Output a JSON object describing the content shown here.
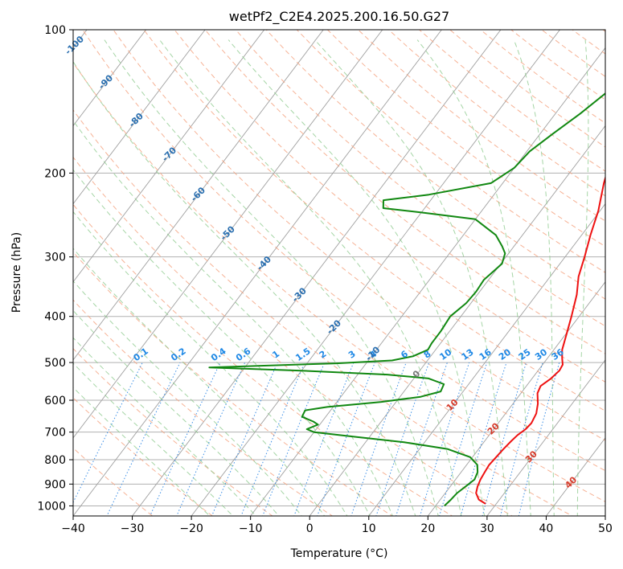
{
  "chart_data": {
    "type": "line",
    "title": "wetPf2_C2E4.2025.200.16.50.G27",
    "xlabel": "Temperature (°C)",
    "ylabel": "Pressure (hPa)",
    "xlim": [
      -40,
      50
    ],
    "ylim": [
      1050,
      100
    ],
    "y_scale": "log",
    "grid": true,
    "x_ticks": [
      -40,
      -30,
      -20,
      -10,
      0,
      10,
      20,
      30,
      40,
      50
    ],
    "y_ticks": [
      100,
      200,
      300,
      400,
      500,
      600,
      700,
      800,
      900,
      1000
    ],
    "colors": {
      "temperature": "#ee1111",
      "dewpoint": "#118811",
      "dry_adiabat": "#f4a582",
      "moist_adiabat": "#8fca8f",
      "mixing_ratio": "#3a8ee6",
      "skew_grid": "#a0a0a0"
    },
    "series": [
      {
        "points": [
          {
            "p": 990,
            "t": 28.2
          },
          {
            "p": 970,
            "t": 26.5
          },
          {
            "p": 940,
            "t": 25.2
          },
          {
            "p": 910,
            "t": 24.6
          },
          {
            "p": 880,
            "t": 24.2
          },
          {
            "p": 850,
            "t": 24.0
          },
          {
            "p": 820,
            "t": 23.8
          },
          {
            "p": 790,
            "t": 24.0
          },
          {
            "p": 760,
            "t": 24.2
          },
          {
            "p": 730,
            "t": 24.5
          },
          {
            "p": 710,
            "t": 24.8
          },
          {
            "p": 690,
            "t": 25.4
          },
          {
            "p": 670,
            "t": 25.6
          },
          {
            "p": 640,
            "t": 25.2
          },
          {
            "p": 610,
            "t": 24.2
          },
          {
            "p": 580,
            "t": 22.8
          },
          {
            "p": 560,
            "t": 22.4
          },
          {
            "p": 540,
            "t": 23.2
          },
          {
            "p": 520,
            "t": 23.6
          },
          {
            "p": 505,
            "t": 23.4
          },
          {
            "p": 490,
            "t": 22.5
          },
          {
            "p": 470,
            "t": 21.4
          },
          {
            "p": 440,
            "t": 20.3
          },
          {
            "p": 400,
            "t": 18.7
          },
          {
            "p": 360,
            "t": 16.8
          },
          {
            "p": 330,
            "t": 14.8
          },
          {
            "p": 300,
            "t": 13.3
          },
          {
            "p": 270,
            "t": 11.5
          },
          {
            "p": 240,
            "t": 9.7
          },
          {
            "p": 210,
            "t": 7.1
          },
          {
            "p": 180,
            "t": 4.6
          },
          {
            "p": 160,
            "t": 2.7
          },
          {
            "p": 140,
            "t": 0.9
          },
          {
            "p": 125,
            "t": -0.3
          },
          {
            "p": 113,
            "t": 0.0
          },
          {
            "p": 105,
            "t": 1.1
          },
          {
            "p": 100,
            "t": 2.4
          }
        ]
      },
      {
        "points": [
          {
            "p": 1000,
            "t": 21.5
          },
          {
            "p": 970,
            "t": 21.8
          },
          {
            "p": 940,
            "t": 22.0
          },
          {
            "p": 910,
            "t": 22.6
          },
          {
            "p": 880,
            "t": 23.2
          },
          {
            "p": 850,
            "t": 22.8
          },
          {
            "p": 820,
            "t": 21.8
          },
          {
            "p": 790,
            "t": 19.6
          },
          {
            "p": 760,
            "t": 14.8
          },
          {
            "p": 735,
            "t": 6.5
          },
          {
            "p": 715,
            "t": -3.0
          },
          {
            "p": 700,
            "t": -10.0
          },
          {
            "p": 690,
            "t": -11.6
          },
          {
            "p": 675,
            "t": -10.3
          },
          {
            "p": 665,
            "t": -11.5
          },
          {
            "p": 650,
            "t": -14.0
          },
          {
            "p": 630,
            "t": -14.3
          },
          {
            "p": 620,
            "t": -11.0
          },
          {
            "p": 605,
            "t": -2.5
          },
          {
            "p": 590,
            "t": 3.5
          },
          {
            "p": 575,
            "t": 6.2
          },
          {
            "p": 555,
            "t": 5.8
          },
          {
            "p": 540,
            "t": 2.5
          },
          {
            "p": 530,
            "t": -5.0
          },
          {
            "p": 520,
            "t": -20.0
          },
          {
            "p": 512,
            "t": -36.0
          },
          {
            "p": 508,
            "t": -28.0
          },
          {
            "p": 502,
            "t": -15.0
          },
          {
            "p": 495,
            "t": -6.0
          },
          {
            "p": 485,
            "t": -3.0
          },
          {
            "p": 470,
            "t": -1.3
          },
          {
            "p": 455,
            "t": -1.5
          },
          {
            "p": 430,
            "t": -1.5
          },
          {
            "p": 400,
            "t": -1.8
          },
          {
            "p": 375,
            "t": -0.8
          },
          {
            "p": 355,
            "t": -0.6
          },
          {
            "p": 335,
            "t": -0.8
          },
          {
            "p": 310,
            "t": 0.2
          },
          {
            "p": 295,
            "t": -0.6
          },
          {
            "p": 285,
            "t": -2.0
          },
          {
            "p": 270,
            "t": -4.5
          },
          {
            "p": 250,
            "t": -10.0
          },
          {
            "p": 242,
            "t": -20.0
          },
          {
            "p": 237,
            "t": -27.0
          },
          {
            "p": 228,
            "t": -28.0
          },
          {
            "p": 222,
            "t": -21.0
          },
          {
            "p": 210,
            "t": -12.0
          },
          {
            "p": 195,
            "t": -10.0
          },
          {
            "p": 180,
            "t": -9.5
          },
          {
            "p": 165,
            "t": -7.8
          },
          {
            "p": 150,
            "t": -5.8
          },
          {
            "p": 135,
            "t": -4.0
          },
          {
            "p": 125,
            "t": -3.2
          },
          {
            "p": 115,
            "t": -2.4
          },
          {
            "p": 108,
            "t": -0.8
          },
          {
            "p": 100,
            "t": 0.1
          }
        ]
      }
    ],
    "mixing_ratio_labels": [
      "0.1",
      "0.2",
      "0.4",
      "0.6",
      "1",
      "1.5",
      "2",
      "3",
      "4",
      "6",
      "8",
      "10",
      "13",
      "16",
      "20",
      "25",
      "30",
      "36"
    ],
    "mixing_ratio_values": [
      0.1,
      0.2,
      0.4,
      0.6,
      1,
      1.5,
      2,
      3,
      4,
      6,
      8,
      10,
      13,
      16,
      20,
      25,
      30,
      36
    ],
    "dry_adiabat_labels": [
      {
        "text": "-100",
        "t": -100,
        "p": 108
      },
      {
        "text": "-90",
        "t": -90,
        "p": 129
      },
      {
        "text": "-80",
        "t": -80,
        "p": 155
      },
      {
        "text": "-70",
        "t": -70,
        "p": 183
      },
      {
        "text": "-60",
        "t": -60,
        "p": 222
      },
      {
        "text": "-50",
        "t": -50,
        "p": 268
      },
      {
        "text": "-40",
        "t": -40,
        "p": 310
      },
      {
        "text": "-30",
        "t": -30,
        "p": 361
      },
      {
        "text": "-20",
        "t": -20,
        "p": 422
      },
      {
        "text": "-10",
        "t": -10,
        "p": 480
      }
    ],
    "moist_adiabat_labels": [
      {
        "text": "0",
        "t": 0,
        "p": 530,
        "kind": "iso"
      },
      {
        "text": "10",
        "t": 10,
        "p": 615,
        "kind": "moist"
      },
      {
        "text": "20",
        "t": 20,
        "p": 690,
        "kind": "moist"
      },
      {
        "text": "30",
        "t": 30,
        "p": 790,
        "kind": "moist"
      },
      {
        "text": "40",
        "t": 40,
        "p": 895,
        "kind": "moist"
      }
    ]
  }
}
